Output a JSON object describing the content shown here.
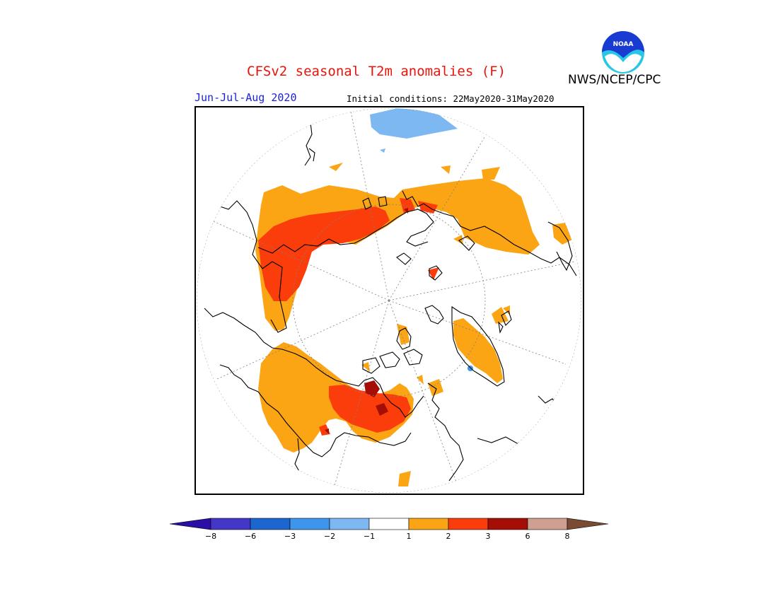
{
  "title": "CFSv2 seasonal T2m anomalies (F)",
  "organization": "NWS/NCEP/CPC",
  "logo_text": "NOAA",
  "season": "Jun-Jul-Aug 2020",
  "initial_conditions": "Initial conditions: 22May2020-31May2020",
  "colorbar": {
    "ticks": [
      "-8",
      "-6",
      "-3",
      "-2",
      "-1",
      "1",
      "2",
      "3",
      "6",
      "8"
    ],
    "colors": [
      "#2a0ea6",
      "#4437c8",
      "#1c66d0",
      "#3d96ec",
      "#7db8f2",
      "#ffffff",
      "#fba414",
      "#fb3d0c",
      "#a50d07",
      "#cfa090",
      "#7a4a32"
    ]
  },
  "map_colors": {
    "anomaly_1_2": "#fba414",
    "anomaly_2_3": "#fb3d0c",
    "anomaly_3_6": "#a50d07",
    "anomaly_neg": "#7db8f2",
    "coast": "#000000",
    "graticule": "#808080"
  }
}
